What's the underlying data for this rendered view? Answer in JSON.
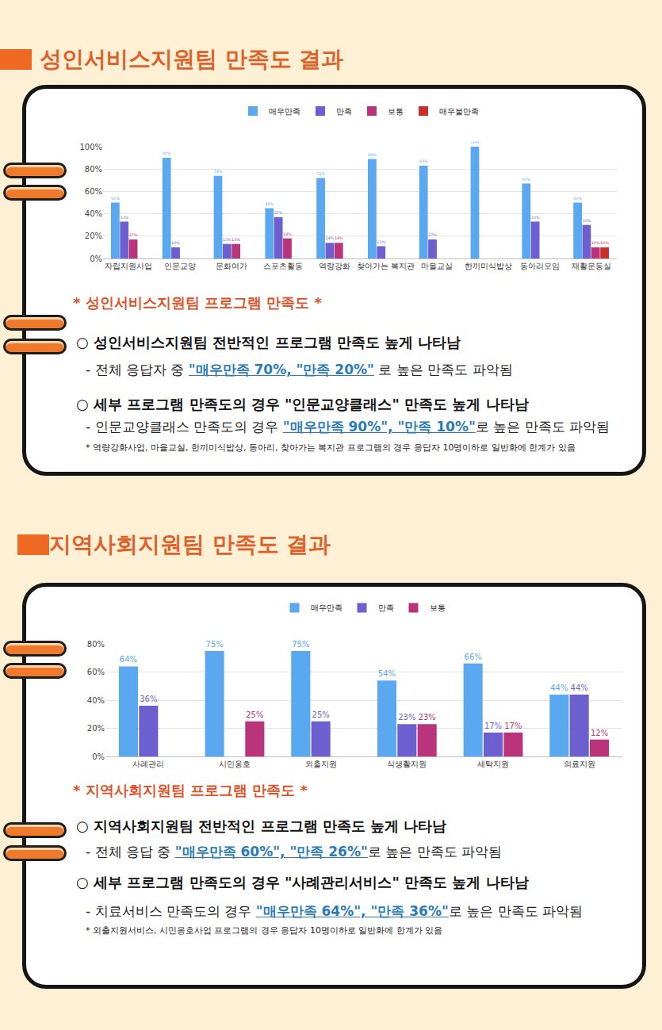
{
  "chart_data": [
    {
      "type": "bar",
      "categories": [
        "자립지원사업",
        "인문교양",
        "문화여가",
        "스포츠활동",
        "역량강화",
        "찾아가는 복지관",
        "마을교실",
        "한끼미식밥상",
        "동아리모임",
        "재활운동실"
      ],
      "series": [
        {
          "name": "매우만족",
          "color": "#5aa8f0",
          "values": [
            50,
            90,
            74,
            45,
            72,
            89,
            83,
            100,
            67,
            50
          ],
          "value_labels": [
            "50%",
            "90%",
            "74%",
            "45%",
            "72%",
            "89%",
            "83%",
            "100%",
            "67%",
            "50%"
          ]
        },
        {
          "name": "만족",
          "color": "#6e5fd0",
          "values": [
            33,
            10,
            13,
            37,
            14,
            11,
            17,
            null,
            33,
            30
          ],
          "value_labels": [
            "33%",
            "10%",
            "13%",
            "37%",
            "14%",
            "11%",
            "17%",
            null,
            "33%",
            "30%"
          ]
        },
        {
          "name": "보통",
          "color": "#b9347a",
          "values": [
            17,
            null,
            13,
            18,
            14,
            null,
            null,
            null,
            null,
            10
          ],
          "value_labels": [
            "17%",
            null,
            "13%",
            "18%",
            "14%",
            null,
            null,
            null,
            null,
            "10%"
          ]
        },
        {
          "name": "매우불만족",
          "color": "#c8302c",
          "values": [
            null,
            null,
            null,
            null,
            null,
            null,
            null,
            null,
            null,
            10
          ],
          "value_labels": [
            null,
            null,
            null,
            null,
            null,
            null,
            null,
            null,
            null,
            "10%"
          ]
        }
      ],
      "ylim": [
        0,
        100
      ],
      "yticks": [
        {
          "value": 0,
          "label": "0%"
        },
        {
          "value": 20,
          "label": "20%"
        },
        {
          "value": 40,
          "label": "40%"
        },
        {
          "value": 60,
          "label": "60%"
        },
        {
          "value": 80,
          "label": "80%"
        },
        {
          "value": 100,
          "label": "100%"
        }
      ],
      "grid": true,
      "legend": "top",
      "data_labels": true
    },
    {
      "type": "bar",
      "categories": [
        "사례관리",
        "시민옹호",
        "외출지원",
        "식생활지원",
        "세탁지원",
        "의료지원"
      ],
      "series": [
        {
          "name": "매우만족",
          "color": "#5aa8f0",
          "values": [
            64,
            75,
            75,
            54,
            66,
            44
          ],
          "value_labels": [
            "64%",
            "75%",
            "75%",
            "54%",
            "66%",
            "44%"
          ]
        },
        {
          "name": "만족",
          "color": "#6e5fd0",
          "values": [
            36,
            null,
            25,
            23,
            17,
            44
          ],
          "value_labels": [
            "36%",
            null,
            "25%",
            "23%",
            "17%",
            "44%"
          ]
        },
        {
          "name": "보통",
          "color": "#b9347a",
          "values": [
            null,
            25,
            null,
            23,
            17,
            12
          ],
          "value_labels": [
            null,
            "25%",
            null,
            "23%",
            "17%",
            "12%"
          ]
        }
      ],
      "ylim": [
        0,
        80
      ],
      "yticks": [
        {
          "value": 0,
          "label": "0%"
        },
        {
          "value": 20,
          "label": "20%"
        },
        {
          "value": 40,
          "label": "40%"
        },
        {
          "value": 60,
          "label": "60%"
        },
        {
          "value": 80,
          "label": "80%"
        }
      ],
      "grid": true,
      "legend": "top",
      "data_labels": true
    }
  ],
  "sections": [
    {
      "heading": "성인서비스지원팀 만족도 결과",
      "summary_title": "* 성인서비스지원팀 프로그램 만족도 *",
      "bullets": [
        {
          "text": "○ 성인서비스지원팀 전반적인 프로그램 만족도 높게 나타남",
          "detail": [
            {
              "text": "- 전체 응답자 중 "
            },
            {
              "text": "\"매우만족 70%, \"만족 20%\"",
              "highlight": true
            },
            {
              "text": " 로 높은 만족도 파악됨"
            }
          ]
        },
        {
          "text": "○ 세부 프로그램 만족도의 경우 \"인문교양클래스\" 만족도 높게 나타남",
          "detail": [
            {
              "text": "- 인문교양클래스 만족도의 경우 "
            },
            {
              "text": "\"매우만족 90%\", \"만족 10%\"",
              "highlight": true
            },
            {
              "text": "로 높은 만족도 파악됨"
            }
          ]
        }
      ],
      "footnote": "* 역량강화사업, 마을교실, 한끼미식밥상, 동아리, 찾아가는 복지관 프로그램의 경우 응답자 10명이하로 일반화에 한계가 있음"
    },
    {
      "heading": "지역사회지원팀 만족도 결과",
      "summary_title": "* 지역사회지원팀 프로그램 만족도 *",
      "bullets": [
        {
          "text": "○ 지역사회지원팀 전반적인 프로그램 만족도 높게 나타남",
          "detail": [
            {
              "text": "- 전체 응답 중 "
            },
            {
              "text": "\"매우만족 60%\", \"만족 26%\"",
              "highlight": true
            },
            {
              "text": "로 높은 만족도 파악됨"
            }
          ]
        },
        {
          "text": "○ 세부 프로그램 만족도의 경우 \"사례관리서비스\" 만족도 높게 나타남",
          "detail": [
            {
              "text": "- 치료서비스 만족도의 경우 "
            },
            {
              "text": "\"매우만족 64%\", \"만족 36%\"",
              "highlight": true
            },
            {
              "text": "로 높은 만족도 파악됨"
            }
          ]
        }
      ],
      "footnote": "* 외출지원서비스, 시민옹호사업 프로그램의 경우 응답자 10명이하로 일반화에 한계가 있음"
    }
  ]
}
